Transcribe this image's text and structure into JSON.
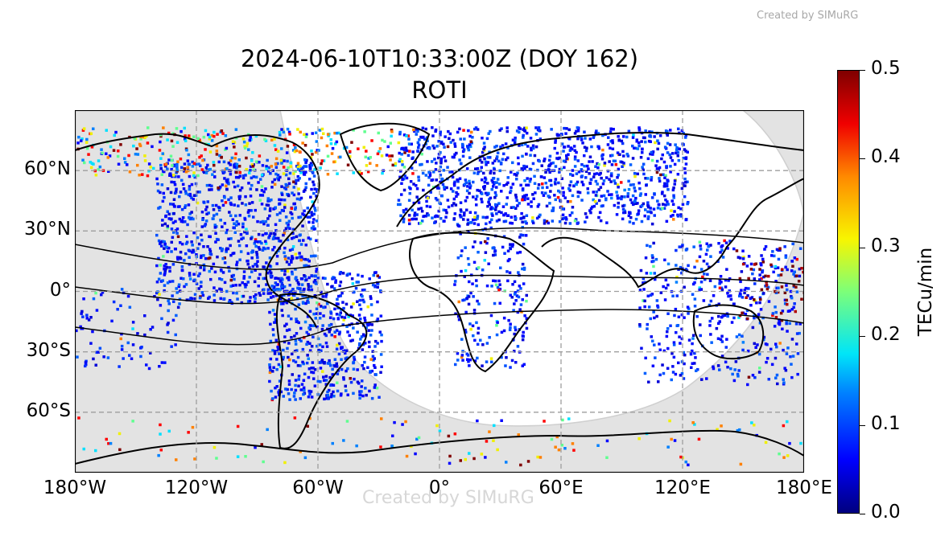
{
  "credit_text": "Created by SIMuRG",
  "title": "2024-06-10T10:33:00Z (DOY 162)",
  "subtitle": "ROTI",
  "map": {
    "projection": "plate-carree",
    "extent": {
      "lon": [
        -180,
        180
      ],
      "lat": [
        -90,
        90
      ]
    },
    "gridlines": true,
    "night_shading": true,
    "lat_ticks": [
      {
        "value": 60,
        "label": "60°N"
      },
      {
        "value": 30,
        "label": "30°N"
      },
      {
        "value": 0,
        "label": "0°"
      },
      {
        "value": -30,
        "label": "30°S"
      },
      {
        "value": -60,
        "label": "60°S"
      }
    ],
    "lon_ticks": [
      {
        "value": -180,
        "label": "180°W"
      },
      {
        "value": -120,
        "label": "120°W"
      },
      {
        "value": -60,
        "label": "60°W"
      },
      {
        "value": 0,
        "label": "0°"
      },
      {
        "value": 60,
        "label": "60°E"
      },
      {
        "value": 120,
        "label": "120°E"
      },
      {
        "value": 180,
        "label": "180°E"
      }
    ]
  },
  "colorbar": {
    "label": "TECu/min",
    "min": 0.0,
    "max": 0.5,
    "colormap": "jet",
    "ticks": [
      "0.0",
      "0.1",
      "0.2",
      "0.3",
      "0.4",
      "0.5"
    ]
  },
  "colors": {
    "night": "#e3e3e3",
    "day": "#ffffff",
    "grid": "#9e9e9e",
    "coast": "#000000",
    "lakes": "#9fb7dc"
  }
}
